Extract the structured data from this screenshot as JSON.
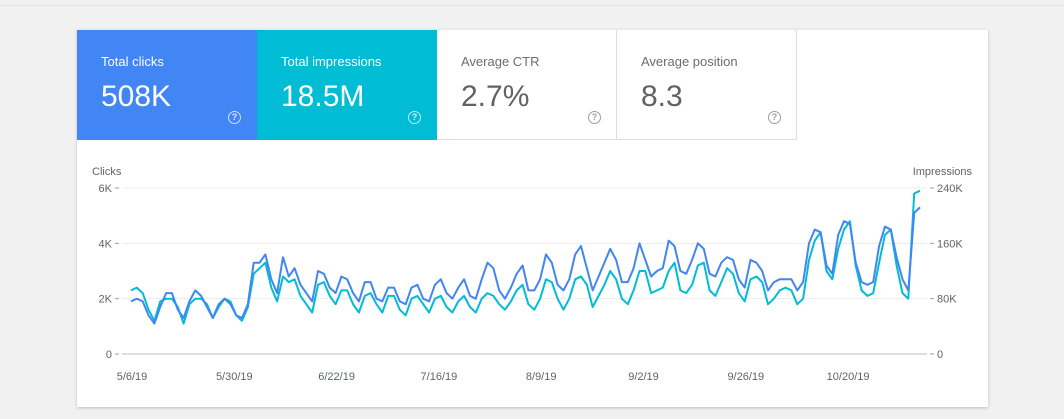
{
  "metrics": {
    "clicks": {
      "label": "Total clicks",
      "value": "508K",
      "help": "?"
    },
    "impressions": {
      "label": "Total impressions",
      "value": "18.5M",
      "help": "?"
    },
    "ctr": {
      "label": "Average CTR",
      "value": "2.7%",
      "help": "?"
    },
    "position": {
      "label": "Average position",
      "value": "8.3",
      "help": "?"
    }
  },
  "colors": {
    "clicks": "#4285f4",
    "impressions": "#00bcd4"
  },
  "chart_data": {
    "type": "line",
    "title": "",
    "left_axis_label": "Clicks",
    "right_axis_label": "Impressions",
    "left_ylim": [
      0,
      6000
    ],
    "right_ylim": [
      0,
      240000
    ],
    "left_ticks": [
      {
        "value": 0,
        "label": "0"
      },
      {
        "value": 2000,
        "label": "2K"
      },
      {
        "value": 4000,
        "label": "4K"
      },
      {
        "value": 6000,
        "label": "6K"
      }
    ],
    "right_ticks": [
      {
        "value": 0,
        "label": "0"
      },
      {
        "value": 80000,
        "label": "80K"
      },
      {
        "value": 160000,
        "label": "160K"
      },
      {
        "value": 240000,
        "label": "240K"
      }
    ],
    "x_tick_labels": [
      "5/6/19",
      "5/30/19",
      "6/22/19",
      "7/16/19",
      "8/9/19",
      "9/2/19",
      "9/26/19",
      "10/20/19"
    ],
    "x_start": "5/6/19",
    "x_end": "11/7/19",
    "grid": true,
    "series": [
      {
        "name": "Clicks",
        "axis": "left",
        "values": [
          1900,
          2000,
          1900,
          1400,
          1100,
          1700,
          2200,
          2200,
          1600,
          1300,
          1900,
          2300,
          2100,
          1700,
          1300,
          1800,
          2000,
          1800,
          1400,
          1300,
          1800,
          3300,
          3300,
          3600,
          2700,
          2200,
          3500,
          2800,
          3100,
          2500,
          2200,
          1900,
          3000,
          2900,
          2400,
          2200,
          2800,
          2700,
          2200,
          1900,
          2600,
          2600,
          2000,
          1900,
          2400,
          2400,
          1900,
          1800,
          2400,
          2500,
          2000,
          1900,
          2500,
          2700,
          2200,
          2000,
          2400,
          2700,
          2100,
          2000,
          2700,
          3300,
          3100,
          2300,
          2000,
          2400,
          2900,
          3200,
          2300,
          2300,
          2700,
          3600,
          3300,
          2500,
          2300,
          2700,
          3600,
          3900,
          3100,
          2300,
          2800,
          3300,
          3800,
          3400,
          2600,
          2600,
          3100,
          4000,
          3400,
          2800,
          3000,
          3100,
          4100,
          3900,
          3000,
          2900,
          3400,
          4000,
          3800,
          2900,
          2800,
          3300,
          3500,
          3400,
          2700,
          2400,
          3400,
          3300,
          3000,
          2300,
          2600,
          2700,
          2700,
          2700,
          2300,
          2600,
          4000,
          4500,
          4400,
          3200,
          2900,
          4300,
          4800,
          4700,
          3300,
          2600,
          2500,
          2600,
          3900,
          4600,
          4500,
          3500,
          2700,
          2300,
          5100,
          5300
        ]
      },
      {
        "name": "Impressions",
        "axis": "left",
        "values": [
          2300,
          2400,
          2200,
          1600,
          1200,
          1900,
          2000,
          2000,
          1700,
          1100,
          1800,
          2000,
          2000,
          1800,
          1300,
          1700,
          2000,
          1900,
          1400,
          1200,
          1700,
          2900,
          3100,
          3300,
          2400,
          1900,
          2800,
          2600,
          2700,
          2100,
          1800,
          1500,
          2500,
          2600,
          2100,
          1800,
          2300,
          2300,
          1800,
          1500,
          2100,
          2200,
          1800,
          1500,
          2100,
          2100,
          1600,
          1400,
          2000,
          2100,
          1800,
          1500,
          2000,
          2100,
          1700,
          1500,
          1900,
          2100,
          1700,
          1500,
          2000,
          2200,
          2100,
          1800,
          1600,
          1900,
          2300,
          2500,
          1800,
          1600,
          2000,
          2700,
          2600,
          2000,
          1600,
          2000,
          2700,
          2800,
          2500,
          1700,
          2100,
          2500,
          3000,
          2700,
          2000,
          1800,
          2300,
          3000,
          3000,
          2200,
          2300,
          2400,
          3000,
          3300,
          2300,
          2200,
          2500,
          3200,
          3300,
          2300,
          2100,
          2600,
          3100,
          2900,
          2200,
          1900,
          2700,
          2800,
          2600,
          1800,
          2000,
          2300,
          2400,
          2300,
          1800,
          2000,
          3400,
          4100,
          4400,
          3000,
          2700,
          3800,
          4500,
          4800,
          3200,
          2300,
          2100,
          2200,
          3300,
          4300,
          4500,
          3200,
          2200,
          2000,
          5800,
          5900
        ]
      }
    ]
  }
}
